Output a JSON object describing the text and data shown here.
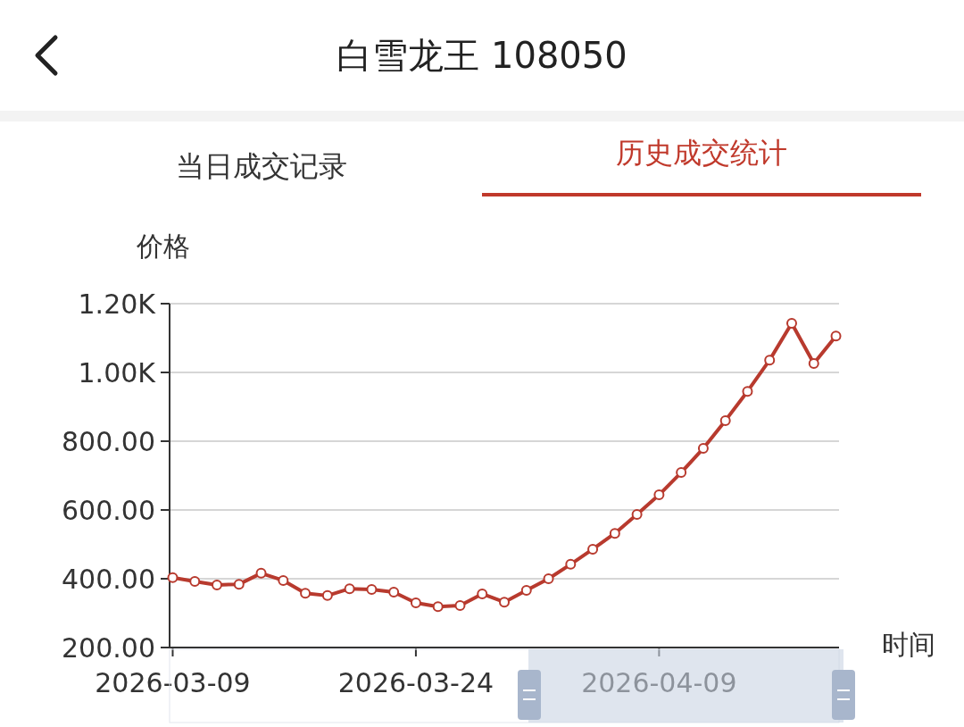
{
  "chart_data": {
    "type": "line",
    "title": "白雪龙王 108050",
    "annotations": [
      "当日成交记录",
      "历史成交统计"
    ],
    "ylabel": "价格",
    "xlabel": "时间",
    "categories": [
      "2026-03-09",
      null,
      null,
      null,
      null,
      null,
      null,
      null,
      null,
      null,
      null,
      "2026-03-24",
      null,
      null,
      null,
      null,
      null,
      null,
      null,
      null,
      null,
      null,
      "2026-04-09",
      null,
      null,
      null,
      null,
      null,
      null,
      null,
      null
    ],
    "series": [
      {
        "color": "#b83a2e",
        "values": [
          403,
          392,
          382,
          384,
          416,
          395,
          358,
          351,
          371,
          369,
          361,
          330,
          319,
          322,
          356,
          332,
          366,
          400,
          442,
          486,
          532,
          587,
          644,
          709,
          779,
          860,
          945,
          1036,
          1143,
          1026,
          1106
        ]
      }
    ],
    "ylim": [
      200,
      1200
    ],
    "yticks": [
      {
        "value": 200,
        "label": "200.00"
      },
      {
        "value": 400,
        "label": "400.00"
      },
      {
        "value": 600,
        "label": "600.00"
      },
      {
        "value": 800,
        "label": "800.00"
      },
      {
        "value": 1000,
        "label": "1.00K"
      },
      {
        "value": 1200,
        "label": "1.20K"
      }
    ],
    "grid": "y",
    "marker": "circle",
    "line_style": "solid"
  }
}
